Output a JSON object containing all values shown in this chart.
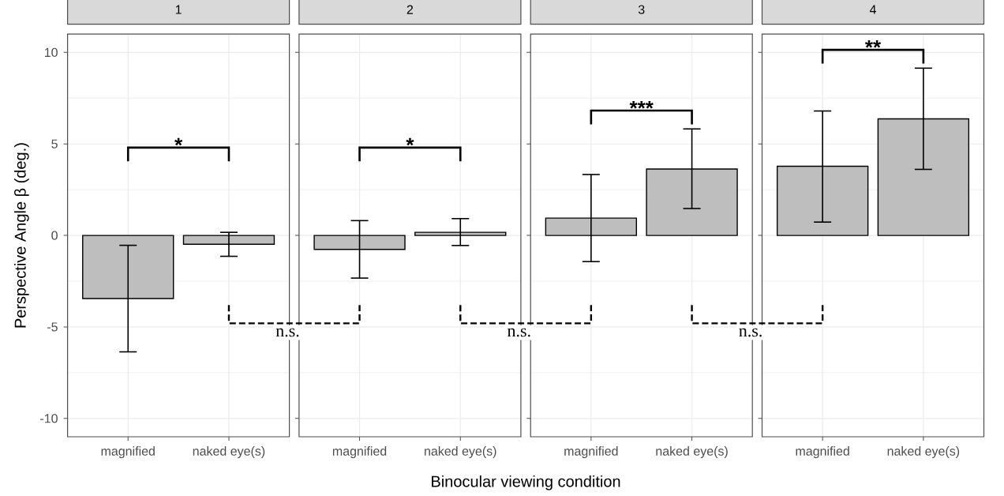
{
  "chart_data": [
    {
      "type": "bar",
      "title": "1",
      "ylabel": "Perspective Angle β (deg.)",
      "categories": [
        "magnified",
        "naked eye(s)"
      ],
      "values": [
        -3.45,
        -0.48
      ],
      "errors": [
        [
          -6.36,
          -0.54
        ],
        [
          -1.14,
          0.17
        ]
      ],
      "color": "#bebebe",
      "ylim": [
        -11,
        11
      ],
      "yticks": [
        -10,
        -5,
        0,
        5,
        10
      ],
      "grid": true,
      "annotations": [
        "*",
        "n.s."
      ]
    },
    {
      "type": "bar",
      "title": "2",
      "xlabel": "Binocular viewing condition",
      "categories": [
        "magnified",
        "naked eye(s)"
      ],
      "values": [
        -0.76,
        0.17
      ],
      "errors": [
        [
          -2.33,
          0.81
        ],
        [
          -0.55,
          0.92
        ]
      ],
      "color": "#bebebe",
      "ylim": [
        -11,
        11
      ],
      "yticks": [
        -10,
        -5,
        0,
        5,
        10
      ],
      "grid": true,
      "tick_labels": "x",
      "annotations": [
        "*",
        "n.s."
      ]
    },
    {
      "type": "bar",
      "title": "3",
      "categories": [
        "magnified",
        "naked eye(s)"
      ],
      "values": [
        0.95,
        3.63
      ],
      "errors": [
        [
          -1.43,
          3.33
        ],
        [
          1.47,
          5.82
        ]
      ],
      "color": "#bebebe",
      "ylim": [
        -11,
        11
      ],
      "yticks": [
        -10,
        -5,
        0,
        5,
        10
      ],
      "grid": true,
      "tick_labels": "x",
      "annotations": [
        "***",
        "n.s."
      ]
    },
    {
      "type": "bar",
      "title": "4",
      "categories": [
        "magnified",
        "naked eye(s)"
      ],
      "values": [
        3.78,
        6.37
      ],
      "errors": [
        [
          0.73,
          6.8
        ],
        [
          3.61,
          9.14
        ]
      ],
      "color": "#bebebe",
      "ylim": [
        -11,
        11
      ],
      "yticks": [
        -10,
        -5,
        0,
        5,
        10
      ],
      "grid": true,
      "tick_labels": "x",
      "annotations": [
        "**"
      ]
    }
  ]
}
